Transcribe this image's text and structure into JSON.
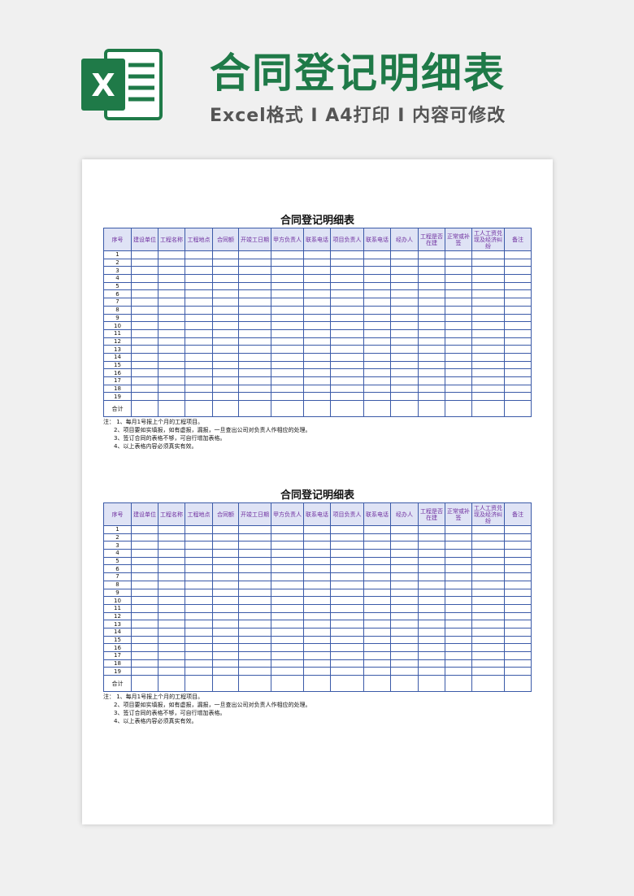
{
  "banner": {
    "title": "合同登记明细表",
    "subtitle": "Excel格式 I A4打印 I 内容可修改",
    "logo_letter": "X"
  },
  "colors": {
    "title": "#1f7a48",
    "header_bg": "#dfe3f5",
    "header_text": "#7030a0",
    "border": "#3b5aa8"
  },
  "sheets": [
    {
      "title": "合同登记明细表"
    },
    {
      "title": "合同登记明细表"
    }
  ],
  "table": {
    "headers": [
      "序号",
      "建设单位",
      "工程名称",
      "工程地点",
      "合同额",
      "开竣工日期",
      "甲方负责人",
      "联系电话",
      "项目负责人",
      "联系电话",
      "经办人",
      "工程是否在建",
      "正常或补签",
      "工人工资兑现及经济纠纷",
      "备注"
    ],
    "rows": [
      "1",
      "2",
      "3",
      "4",
      "5",
      "6",
      "7",
      "8",
      "9",
      "10",
      "11",
      "12",
      "13",
      "14",
      "15",
      "16",
      "17",
      "18",
      "19"
    ],
    "total_label": "合计"
  },
  "notes": [
    "注：  1、每月1号报上个月的工程项目。",
    "2、项目要如实填报，如有虚报，漏报，一旦查出公司对负责人作相应的处理。",
    "3、签订合同的表格不够，可自行增加表格。",
    "4、以上表格内容必须真实有效。"
  ]
}
